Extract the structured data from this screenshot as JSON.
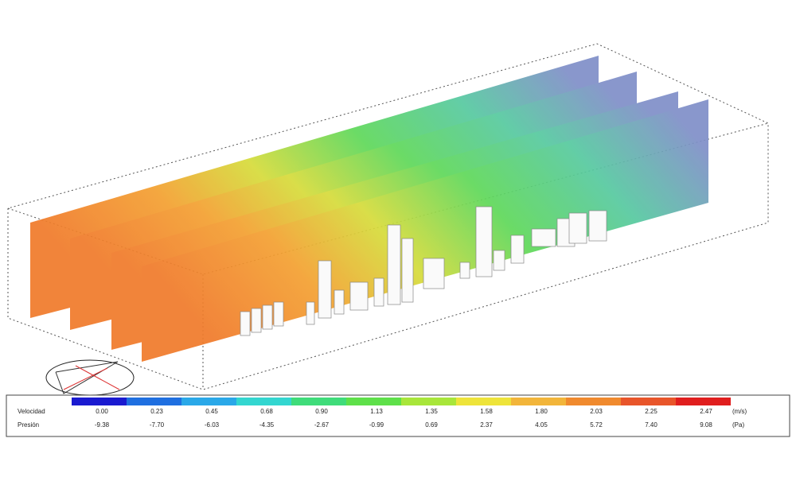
{
  "legend": {
    "rows": [
      {
        "label": "Velocidad",
        "unit": "(m/s)",
        "values": [
          "0.00",
          "0.23",
          "0.45",
          "0.68",
          "0.90",
          "1.13",
          "1.35",
          "1.58",
          "1.80",
          "2.03",
          "2.25",
          "2.47"
        ]
      },
      {
        "label": "Presión",
        "unit": "(Pa)",
        "values": [
          "-9.38",
          "-7.70",
          "-6.03",
          "-4.35",
          "-2.67",
          "-0.99",
          "0.69",
          "2.37",
          "4.05",
          "5.72",
          "7.40",
          "9.08"
        ]
      }
    ],
    "colors": [
      "#1a1ad0",
      "#1f6fe0",
      "#2aa8e8",
      "#33d6d0",
      "#3fdc7a",
      "#5ee04a",
      "#a8e63a",
      "#eee43a",
      "#f2b53a",
      "#f08a2e",
      "#e8552a",
      "#e01e1e"
    ]
  }
}
